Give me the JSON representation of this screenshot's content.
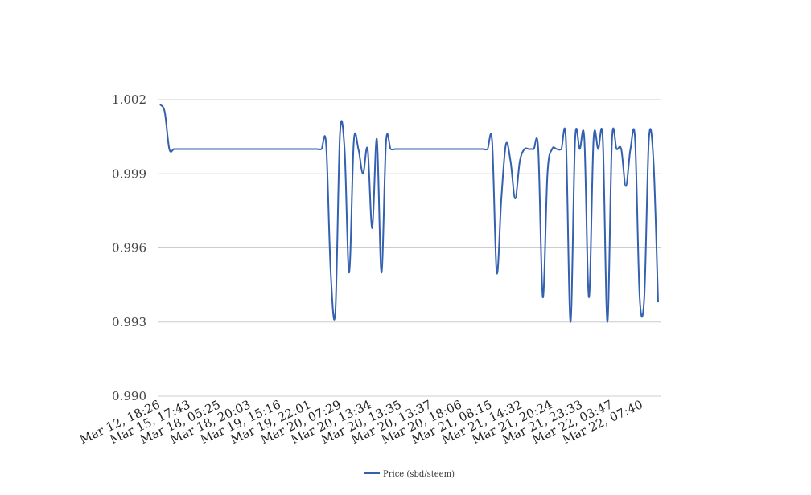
{
  "chart_data": {
    "type": "line",
    "title": "",
    "xlabel": "",
    "ylabel": "",
    "ylim": [
      0.99,
      1.002
    ],
    "yticks": [
      "0.990",
      "0.993",
      "0.996",
      "0.999",
      "1.002"
    ],
    "grid": true,
    "legend_position": "bottom-center",
    "x_tick_labels": [
      "Mar 12, 18:26",
      "Mar 15, 17:43",
      "Mar 18, 05:25",
      "Mar 18, 20:03",
      "Mar 19, 15:16",
      "Mar 19, 22:01",
      "Mar 20, 07:29",
      "Mar 20, 13:34",
      "Mar 20, 13:35",
      "Mar 20, 13:37",
      "Mar 20, 18:06",
      "Mar 21, 08:15",
      "Mar 21, 14:32",
      "Mar 21, 20:24",
      "Mar 21, 23:33",
      "Mar 22, 03:47",
      "Mar 22, 07:40"
    ],
    "series": [
      {
        "name": "Price (sbd/steem)",
        "color": "#3460b0",
        "values": [
          1.0018,
          1.0015,
          1.0,
          1.0,
          1.0,
          1.0,
          1.0,
          1.0,
          1.0,
          1.0,
          1.0,
          1.0,
          1.0,
          1.0,
          1.0,
          1.0,
          1.0,
          1.0,
          1.0,
          1.0,
          1.0,
          1.0,
          1.0,
          1.0,
          1.0,
          1.0,
          1.0,
          1.0,
          1.0,
          1.0,
          1.0,
          1.0,
          1.0,
          1.0,
          1.0,
          1.0,
          1.0002,
          0.995,
          0.9934,
          1.0006,
          1.0,
          0.995,
          1.0003,
          1.0,
          0.999,
          1.0,
          0.9968,
          1.0004,
          0.995,
          1.0003,
          1.0,
          1.0,
          1.0,
          1.0,
          1.0,
          1.0,
          1.0,
          1.0,
          1.0,
          1.0,
          1.0,
          1.0,
          1.0,
          1.0,
          1.0,
          1.0,
          1.0,
          1.0,
          1.0,
          1.0,
          1.0,
          1.0,
          1.0003,
          0.995,
          0.998,
          1.0002,
          0.9995,
          0.998,
          0.9995,
          1.0,
          1.0,
          1.0,
          1.0,
          0.994,
          0.999,
          1.0,
          1.0,
          1.0,
          1.0004,
          0.993,
          1.0004,
          1.0,
          1.0004,
          0.994,
          1.0004,
          1.0,
          1.0004,
          0.993,
          1.0004,
          1.0,
          1.0,
          0.9985,
          1.0,
          1.0004,
          0.994,
          0.994,
          1.0004,
          0.9995,
          0.9938
        ]
      }
    ]
  }
}
